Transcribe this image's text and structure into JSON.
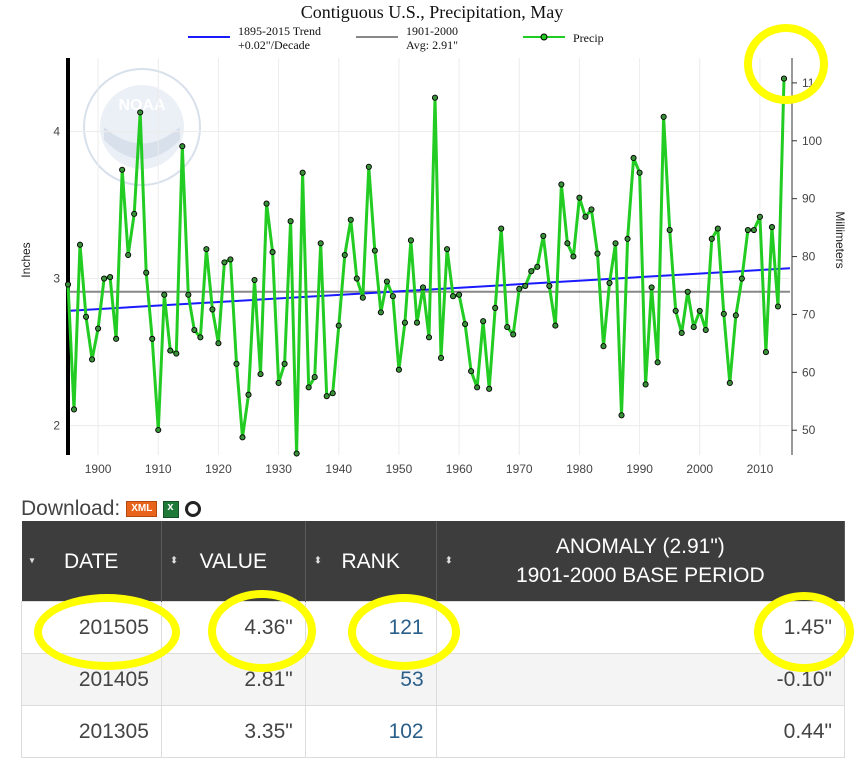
{
  "chart_data": {
    "type": "line",
    "title": "Contiguous U.S., Precipitation, May",
    "ylabel": "Inches",
    "y2label": "Millimeters",
    "ylim": [
      1.8,
      4.5
    ],
    "xlim": [
      1895,
      2015
    ],
    "x_ticks": [
      "1900",
      "1910",
      "1920",
      "1930",
      "1940",
      "1950",
      "1960",
      "1970",
      "1980",
      "1990",
      "2000",
      "2010"
    ],
    "y_ticks": [
      "2",
      "3",
      "4"
    ],
    "y2_ticks": [
      "50",
      "60",
      "70",
      "80",
      "90",
      "100",
      "110"
    ],
    "grid": true,
    "legend_position": "top",
    "colors": {
      "precip": "#22cc22",
      "trend": "#1a1aff",
      "average": "#888888",
      "highlight": "#ffff00"
    },
    "series": [
      {
        "name": "Precip",
        "x_start": 1895,
        "values": [
          2.96,
          2.11,
          3.23,
          2.74,
          2.45,
          2.66,
          3.0,
          3.01,
          2.59,
          3.74,
          3.16,
          3.44,
          4.13,
          3.04,
          2.59,
          1.97,
          2.89,
          2.51,
          2.49,
          3.9,
          2.89,
          2.65,
          2.6,
          3.2,
          2.79,
          2.56,
          3.11,
          3.13,
          2.42,
          1.92,
          2.21,
          2.99,
          2.35,
          3.51,
          3.18,
          2.29,
          2.42,
          3.39,
          1.81,
          3.72,
          2.26,
          2.33,
          3.24,
          2.2,
          2.22,
          2.68,
          3.16,
          3.4,
          3.0,
          2.87,
          3.76,
          3.19,
          2.77,
          2.98,
          2.88,
          2.38,
          2.7,
          3.26,
          2.7,
          2.94,
          2.6,
          4.23,
          2.46,
          3.2,
          2.88,
          2.89,
          2.69,
          2.37,
          2.26,
          2.71,
          2.25,
          2.8,
          3.34,
          2.67,
          2.62,
          2.93,
          2.95,
          3.05,
          3.08,
          3.29,
          2.95,
          2.68,
          3.64,
          3.24,
          3.15,
          3.55,
          3.42,
          3.47,
          3.17,
          2.54,
          2.97,
          3.24,
          2.07,
          3.27,
          3.82,
          3.72,
          2.28,
          2.94,
          2.43,
          4.1,
          3.33,
          2.78,
          2.63,
          2.91,
          2.67,
          2.78,
          2.65,
          3.27,
          3.34,
          2.76,
          2.29,
          2.75,
          3.0,
          3.33,
          3.33,
          3.42,
          2.5,
          3.35,
          2.81,
          4.36
        ]
      }
    ],
    "legend": {
      "trend_line1": "1895-2015 Trend",
      "trend_line2": "+0.02\"/Decade",
      "avg_line1": "1901-2000",
      "avg_line2": "Avg: 2.91\"",
      "precip": "Precip"
    },
    "trend": {
      "start": [
        1895,
        2.78
      ],
      "end": [
        2015,
        3.07
      ]
    },
    "average": 2.91
  },
  "download": {
    "label": "Download:",
    "xml": "XML"
  },
  "table": {
    "headers": {
      "date": "DATE",
      "value": "VALUE",
      "rank": "RANK",
      "anomaly_line1": "ANOMALY (2.91\")",
      "anomaly_line2": "1901-2000 BASE PERIOD"
    },
    "sort_icons": {
      "first": "▾",
      "other": "⬍"
    },
    "rows": [
      {
        "date": "201505",
        "value": "4.36\"",
        "rank": "121",
        "anomaly": "1.45\""
      },
      {
        "date": "201405",
        "value": "2.81\"",
        "rank": "53",
        "anomaly": "-0.10\""
      },
      {
        "date": "201305",
        "value": "3.35\"",
        "rank": "102",
        "anomaly": "0.44\""
      }
    ]
  }
}
